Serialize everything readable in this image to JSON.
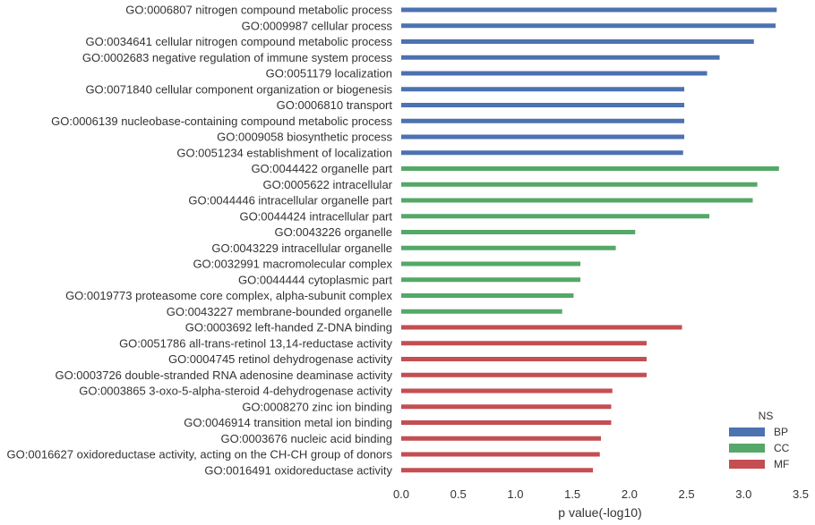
{
  "chart_data": {
    "type": "bar",
    "orientation": "horizontal",
    "xlabel": "p value(-log10)",
    "xlim": [
      0,
      3.5
    ],
    "xticks": [
      "0.0",
      "0.5",
      "1.0",
      "1.5",
      "2.0",
      "2.5",
      "3.0",
      "3.5"
    ],
    "grid": false,
    "legend": {
      "title": "NS",
      "placement": "bottom-right",
      "entries": [
        {
          "name": "BP",
          "color": "#4c72b0"
        },
        {
          "name": "CC",
          "color": "#55a868"
        },
        {
          "name": "MF",
          "color": "#c44e52"
        }
      ]
    },
    "bars": [
      {
        "label": "GO:0006807 nitrogen compound metabolic process",
        "value": 3.29,
        "group": "BP"
      },
      {
        "label": "GO:0009987 cellular process",
        "value": 3.28,
        "group": "BP"
      },
      {
        "label": "GO:0034641 cellular nitrogen compound metabolic process",
        "value": 3.09,
        "group": "BP"
      },
      {
        "label": "GO:0002683 negative regulation of immune system process",
        "value": 2.79,
        "group": "BP"
      },
      {
        "label": "GO:0051179 localization",
        "value": 2.68,
        "group": "BP"
      },
      {
        "label": "GO:0071840 cellular component organization or biogenesis",
        "value": 2.48,
        "group": "BP"
      },
      {
        "label": "GO:0006810 transport",
        "value": 2.48,
        "group": "BP"
      },
      {
        "label": "GO:0006139 nucleobase-containing compound metabolic process",
        "value": 2.48,
        "group": "BP"
      },
      {
        "label": "GO:0009058 biosynthetic process",
        "value": 2.48,
        "group": "BP"
      },
      {
        "label": "GO:0051234 establishment of localization",
        "value": 2.47,
        "group": "BP"
      },
      {
        "label": "GO:0044422 organelle part",
        "value": 3.31,
        "group": "CC"
      },
      {
        "label": "GO:0005622 intracellular",
        "value": 3.12,
        "group": "CC"
      },
      {
        "label": "GO:0044446 intracellular organelle part",
        "value": 3.08,
        "group": "CC"
      },
      {
        "label": "GO:0044424 intracellular part",
        "value": 2.7,
        "group": "CC"
      },
      {
        "label": "GO:0043226 organelle",
        "value": 2.05,
        "group": "CC"
      },
      {
        "label": "GO:0043229 intracellular organelle",
        "value": 1.88,
        "group": "CC"
      },
      {
        "label": "GO:0032991 macromolecular complex",
        "value": 1.57,
        "group": "CC"
      },
      {
        "label": "GO:0044444 cytoplasmic part",
        "value": 1.57,
        "group": "CC"
      },
      {
        "label": "GO:0019773 proteasome core complex, alpha-subunit complex",
        "value": 1.51,
        "group": "CC"
      },
      {
        "label": "GO:0043227 membrane-bounded organelle",
        "value": 1.41,
        "group": "CC"
      },
      {
        "label": "GO:0003692 left-handed Z-DNA binding",
        "value": 2.46,
        "group": "MF"
      },
      {
        "label": "GO:0051786 all-trans-retinol 13,14-reductase activity",
        "value": 2.15,
        "group": "MF"
      },
      {
        "label": "GO:0004745 retinol dehydrogenase activity",
        "value": 2.15,
        "group": "MF"
      },
      {
        "label": "GO:0003726 double-stranded RNA adenosine deaminase activity",
        "value": 2.15,
        "group": "MF"
      },
      {
        "label": "GO:0003865 3-oxo-5-alpha-steroid 4-dehydrogenase activity",
        "value": 1.85,
        "group": "MF"
      },
      {
        "label": "GO:0008270 zinc ion binding",
        "value": 1.84,
        "group": "MF"
      },
      {
        "label": "GO:0046914 transition metal ion binding",
        "value": 1.84,
        "group": "MF"
      },
      {
        "label": "GO:0003676 nucleic acid binding",
        "value": 1.75,
        "group": "MF"
      },
      {
        "label": "GO:0016627 oxidoreductase activity, acting on the CH-CH group of donors",
        "value": 1.74,
        "group": "MF"
      },
      {
        "label": "GO:0016491 oxidoreductase activity",
        "value": 1.68,
        "group": "MF"
      }
    ]
  }
}
